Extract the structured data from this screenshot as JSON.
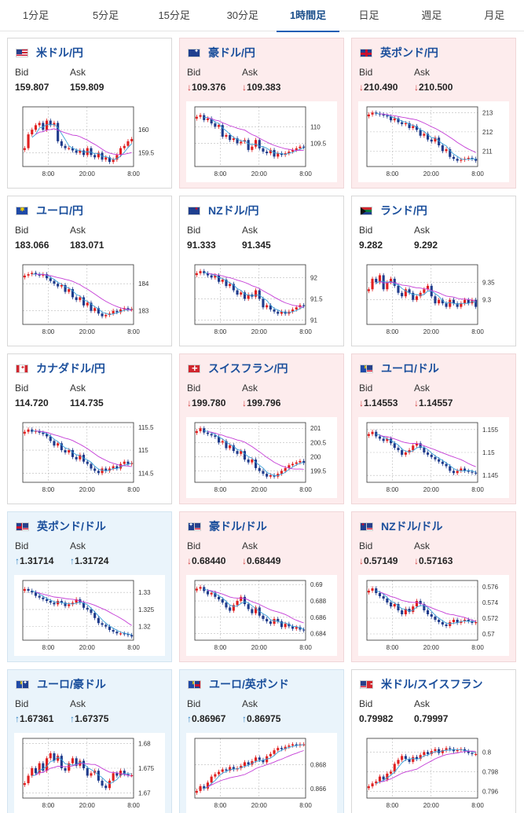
{
  "tabs": [
    {
      "label": "1分足",
      "active": false
    },
    {
      "label": "5分足",
      "active": false
    },
    {
      "label": "15分足",
      "active": false
    },
    {
      "label": "30分足",
      "active": false
    },
    {
      "label": "1時間足",
      "active": true
    },
    {
      "label": "日足",
      "active": false
    },
    {
      "label": "週足",
      "active": false
    },
    {
      "label": "月足",
      "active": false
    }
  ],
  "labels": {
    "bid": "Bid",
    "ask": "Ask",
    "arrow_down": "↓",
    "arrow_up": "↑"
  },
  "colors": {
    "accent": "#1a5fb4",
    "title_link": "#1b4f9c",
    "card_down_bg": "#fdeced",
    "card_up_bg": "#eaf4fb",
    "candle_up": "#e02020",
    "candle_down": "#1f3b8c",
    "ma_short": "#3aa0d8",
    "ma_long": "#c43cd6"
  },
  "cards": [
    {
      "name": "米ドル/円",
      "flags": [
        "us-flag"
      ],
      "bid": "159.807",
      "ask": "159.809",
      "trend": "none",
      "chart_data": {
        "type": "candlestick",
        "x_ticks": [
          "8:00",
          "20:00",
          "8:00"
        ],
        "y_ticks": [
          "160",
          "159.5"
        ],
        "ylim": [
          159.2,
          160.5
        ],
        "close": [
          159.6,
          159.9,
          160.0,
          160.1,
          160.15,
          160.0,
          160.2,
          160.1,
          160.15,
          159.75,
          159.65,
          159.6,
          159.6,
          159.55,
          159.5,
          159.55,
          159.45,
          159.6,
          159.45,
          159.4,
          159.5,
          159.35,
          159.4,
          159.3,
          159.35,
          159.45,
          159.6,
          159.65,
          159.75,
          159.8
        ]
      }
    },
    {
      "name": "豪ドル/円",
      "flags": [
        "au-flag"
      ],
      "bid": "109.376",
      "ask": "109.383",
      "trend": "down",
      "chart_data": {
        "type": "candlestick",
        "x_ticks": [
          "8:00",
          "20:00",
          "8:00"
        ],
        "y_ticks": [
          "110",
          "109.5"
        ],
        "ylim": [
          108.8,
          110.6
        ],
        "close": [
          110.3,
          110.35,
          110.2,
          110.25,
          110.1,
          110.0,
          110.05,
          109.7,
          109.75,
          109.6,
          109.65,
          109.5,
          109.55,
          109.6,
          109.3,
          109.4,
          109.6,
          109.35,
          109.25,
          109.2,
          109.3,
          109.1,
          109.2,
          109.15,
          109.2,
          109.25,
          109.3,
          109.35,
          109.4,
          109.38
        ]
      }
    },
    {
      "name": "英ポンド/円",
      "flags": [
        "gb-flag"
      ],
      "bid": "210.490",
      "ask": "210.500",
      "trend": "down",
      "chart_data": {
        "type": "candlestick",
        "x_ticks": [
          "8:00",
          "20:00",
          "8:00"
        ],
        "y_ticks": [
          "213",
          "212",
          "211"
        ],
        "ylim": [
          210.2,
          213.3
        ],
        "close": [
          212.9,
          213.0,
          212.95,
          212.9,
          212.85,
          212.8,
          212.6,
          212.7,
          212.5,
          212.4,
          212.45,
          212.2,
          212.3,
          212.1,
          211.8,
          211.9,
          211.6,
          211.5,
          211.7,
          211.3,
          211.0,
          211.1,
          210.7,
          210.6,
          210.5,
          210.55,
          210.6,
          210.65,
          210.6,
          210.5
        ]
      }
    },
    {
      "name": "ユーロ/円",
      "flags": [
        "eu-flag"
      ],
      "bid": "183.066",
      "ask": "183.071",
      "trend": "none",
      "chart_data": {
        "type": "candlestick",
        "x_ticks": [
          "8:00",
          "20:00",
          "8:00"
        ],
        "y_ticks": [
          "184",
          "183"
        ],
        "ylim": [
          182.5,
          184.7
        ],
        "close": [
          184.3,
          184.35,
          184.4,
          184.35,
          184.3,
          184.35,
          184.2,
          184.1,
          184.0,
          183.9,
          183.95,
          183.7,
          183.8,
          183.5,
          183.4,
          183.5,
          183.2,
          183.3,
          183.0,
          183.1,
          182.9,
          182.8,
          182.85,
          182.9,
          183.0,
          182.95,
          183.05,
          183.1,
          183.05,
          183.07
        ]
      }
    },
    {
      "name": "NZドル/円",
      "flags": [
        "nz-flag"
      ],
      "bid": "91.333",
      "ask": "91.345",
      "trend": "none",
      "chart_data": {
        "type": "candlestick",
        "x_ticks": [
          "8:00",
          "20:00",
          "8:00"
        ],
        "y_ticks": [
          "92",
          "91.5",
          "91"
        ],
        "ylim": [
          90.9,
          92.3
        ],
        "close": [
          92.1,
          92.15,
          92.1,
          92.05,
          92.0,
          92.05,
          91.9,
          91.95,
          91.8,
          91.85,
          91.7,
          91.6,
          91.65,
          91.5,
          91.6,
          91.55,
          91.7,
          91.5,
          91.3,
          91.35,
          91.25,
          91.2,
          91.15,
          91.2,
          91.15,
          91.2,
          91.25,
          91.3,
          91.35,
          91.33
        ]
      }
    },
    {
      "name": "ランド/円",
      "flags": [
        "za-flag"
      ],
      "bid": "9.282",
      "ask": "9.292",
      "trend": "none",
      "chart_data": {
        "type": "candlestick",
        "x_ticks": [
          "8:00",
          "20:00",
          "8:00"
        ],
        "y_ticks": [
          "9.35",
          "9.3"
        ],
        "ylim": [
          9.23,
          9.4
        ],
        "close": [
          9.33,
          9.36,
          9.35,
          9.37,
          9.33,
          9.35,
          9.36,
          9.34,
          9.32,
          9.31,
          9.33,
          9.32,
          9.3,
          9.31,
          9.32,
          9.33,
          9.34,
          9.31,
          9.29,
          9.3,
          9.29,
          9.28,
          9.3,
          9.29,
          9.28,
          9.29,
          9.3,
          9.29,
          9.3,
          9.28
        ]
      }
    },
    {
      "name": "カナダドル/円",
      "flags": [
        "ca-flag"
      ],
      "bid": "114.720",
      "ask": "114.735",
      "trend": "none",
      "chart_data": {
        "type": "candlestick",
        "x_ticks": [
          "8:00",
          "20:00",
          "8:00"
        ],
        "y_ticks": [
          "115.5",
          "115",
          "114.5"
        ],
        "ylim": [
          114.3,
          115.6
        ],
        "close": [
          115.4,
          115.45,
          115.4,
          115.42,
          115.38,
          115.35,
          115.3,
          115.2,
          115.1,
          115.15,
          115.0,
          114.95,
          115.0,
          114.85,
          114.8,
          114.9,
          114.75,
          114.7,
          114.6,
          114.55,
          114.5,
          114.6,
          114.55,
          114.6,
          114.65,
          114.6,
          114.7,
          114.75,
          114.7,
          114.72
        ]
      }
    },
    {
      "name": "スイスフラン/円",
      "flags": [
        "ch-flag"
      ],
      "bid": "199.780",
      "ask": "199.796",
      "trend": "down",
      "chart_data": {
        "type": "candlestick",
        "x_ticks": [
          "8:00",
          "20:00",
          "8:00"
        ],
        "y_ticks": [
          "201",
          "200.5",
          "200",
          "199.5"
        ],
        "ylim": [
          199.1,
          201.2
        ],
        "close": [
          200.9,
          201.0,
          200.85,
          200.8,
          200.75,
          200.7,
          200.5,
          200.55,
          200.3,
          200.4,
          200.2,
          200.1,
          200.2,
          199.9,
          199.8,
          199.9,
          199.6,
          199.5,
          199.4,
          199.3,
          199.35,
          199.3,
          199.4,
          199.5,
          199.6,
          199.7,
          199.75,
          199.8,
          199.85,
          199.78
        ]
      }
    },
    {
      "name": "ユーロ/ドル",
      "flags": [
        "eu-flag",
        "us-flag"
      ],
      "bid": "1.14553",
      "ask": "1.14557",
      "trend": "down",
      "chart_data": {
        "type": "candlestick",
        "x_ticks": [
          "8:00",
          "20:00",
          "8:00"
        ],
        "y_ticks": [
          "1.155",
          "1.15",
          "1.145"
        ],
        "ylim": [
          1.1435,
          1.1565
        ],
        "close": [
          1.154,
          1.1545,
          1.1535,
          1.153,
          1.1525,
          1.153,
          1.152,
          1.151,
          1.1505,
          1.1495,
          1.15,
          1.1505,
          1.1515,
          1.152,
          1.151,
          1.15,
          1.1495,
          1.149,
          1.1485,
          1.148,
          1.1475,
          1.147,
          1.146,
          1.1455,
          1.146,
          1.1465,
          1.146,
          1.1458,
          1.1456,
          1.1455
        ]
      }
    },
    {
      "name": "英ポンド/ドル",
      "flags": [
        "gb-flag",
        "us-flag"
      ],
      "bid": "1.31714",
      "ask": "1.31724",
      "trend": "up",
      "chart_data": {
        "type": "candlestick",
        "x_ticks": [
          "8:00",
          "20:00",
          "8:00"
        ],
        "y_ticks": [
          "1.33",
          "1.325",
          "1.32"
        ],
        "ylim": [
          1.316,
          1.3335
        ],
        "close": [
          1.331,
          1.3305,
          1.33,
          1.329,
          1.3285,
          1.328,
          1.3275,
          1.327,
          1.3265,
          1.3275,
          1.327,
          1.326,
          1.3265,
          1.327,
          1.328,
          1.327,
          1.3255,
          1.325,
          1.324,
          1.3225,
          1.321,
          1.3205,
          1.32,
          1.319,
          1.3185,
          1.318,
          1.318,
          1.3178,
          1.3175,
          1.3171
        ]
      }
    },
    {
      "name": "豪ドル/ドル",
      "flags": [
        "au-flag",
        "us-flag"
      ],
      "bid": "0.68440",
      "ask": "0.68449",
      "trend": "down",
      "chart_data": {
        "type": "candlestick",
        "x_ticks": [
          "8:00",
          "20:00",
          "8:00"
        ],
        "y_ticks": [
          "0.69",
          "0.688",
          "0.686",
          "0.684"
        ],
        "ylim": [
          0.6832,
          0.6905
        ],
        "close": [
          0.6895,
          0.6897,
          0.6892,
          0.6888,
          0.689,
          0.6885,
          0.6882,
          0.6878,
          0.6872,
          0.6868,
          0.6875,
          0.688,
          0.6885,
          0.6876,
          0.687,
          0.6865,
          0.6872,
          0.6862,
          0.6858,
          0.6855,
          0.6852,
          0.6858,
          0.6855,
          0.6848,
          0.6852,
          0.6849,
          0.6846,
          0.6848,
          0.6845,
          0.6844
        ]
      }
    },
    {
      "name": "NZドル/ドル",
      "flags": [
        "nz-flag",
        "us-flag"
      ],
      "bid": "0.57149",
      "ask": "0.57163",
      "trend": "down",
      "chart_data": {
        "type": "candlestick",
        "x_ticks": [
          "8:00",
          "20:00",
          "8:00"
        ],
        "y_ticks": [
          "0.576",
          "0.574",
          "0.572",
          "0.57"
        ],
        "ylim": [
          0.5692,
          0.5768
        ],
        "close": [
          0.5755,
          0.5758,
          0.5752,
          0.5748,
          0.5745,
          0.574,
          0.5735,
          0.5738,
          0.573,
          0.5725,
          0.5732,
          0.5728,
          0.5735,
          0.5742,
          0.5738,
          0.573,
          0.5725,
          0.5722,
          0.5718,
          0.5715,
          0.5712,
          0.571,
          0.5715,
          0.5718,
          0.5714,
          0.5716,
          0.5718,
          0.5716,
          0.5714,
          0.5715
        ]
      }
    },
    {
      "name": "ユーロ/豪ドル",
      "flags": [
        "eu-flag",
        "au-flag"
      ],
      "bid": "1.67361",
      "ask": "1.67375",
      "trend": "up",
      "chart_data": {
        "type": "candlestick",
        "x_ticks": [
          "8:00",
          "20:00",
          "8:00"
        ],
        "y_ticks": [
          "1.68",
          "1.675",
          "1.67"
        ],
        "ylim": [
          1.669,
          1.681
        ],
        "close": [
          1.672,
          1.6735,
          1.675,
          1.674,
          1.676,
          1.6745,
          1.677,
          1.678,
          1.6765,
          1.6775,
          1.675,
          1.6745,
          1.676,
          1.677,
          1.6755,
          1.6765,
          1.675,
          1.6735,
          1.674,
          1.6745,
          1.6725,
          1.6715,
          1.671,
          1.6725,
          1.674,
          1.6735,
          1.6745,
          1.6738,
          1.6736,
          1.6736
        ]
      }
    },
    {
      "name": "ユーロ/英ポンド",
      "flags": [
        "eu-flag",
        "gb-flag"
      ],
      "bid": "0.86967",
      "ask": "0.86975",
      "trend": "up",
      "chart_data": {
        "type": "candlestick",
        "x_ticks": [
          "8:00",
          "20:00",
          "8:00"
        ],
        "y_ticks": [
          "0.868",
          "0.866"
        ],
        "ylim": [
          0.8652,
          0.8702
        ],
        "close": [
          0.8658,
          0.8662,
          0.866,
          0.8665,
          0.867,
          0.8672,
          0.8674,
          0.8676,
          0.8675,
          0.8678,
          0.8676,
          0.8677,
          0.8679,
          0.8682,
          0.868,
          0.8683,
          0.8686,
          0.8684,
          0.8682,
          0.8687,
          0.8689,
          0.8692,
          0.8694,
          0.8693,
          0.8695,
          0.8696,
          0.8697,
          0.8696,
          0.8697,
          0.8697
        ]
      }
    },
    {
      "name": "米ドル/スイスフラン",
      "flags": [
        "us-flag",
        "ch-flag"
      ],
      "bid": "0.79982",
      "ask": "0.79997",
      "trend": "none",
      "chart_data": {
        "type": "candlestick",
        "x_ticks": [
          "8:00",
          "20:00",
          "8:00"
        ],
        "y_ticks": [
          "0.8",
          "0.798",
          "0.796"
        ],
        "ylim": [
          0.7953,
          0.8014
        ],
        "close": [
          0.7965,
          0.7968,
          0.797,
          0.7975,
          0.7972,
          0.7978,
          0.798,
          0.7988,
          0.7992,
          0.7996,
          0.7993,
          0.799,
          0.7995,
          0.7993,
          0.7997,
          0.8,
          0.7998,
          0.8001,
          0.8003,
          0.7999,
          0.8002,
          0.8004,
          0.8003,
          0.8001,
          0.8002,
          0.8003,
          0.8001,
          0.7999,
          0.7998,
          0.7998
        ]
      }
    }
  ]
}
